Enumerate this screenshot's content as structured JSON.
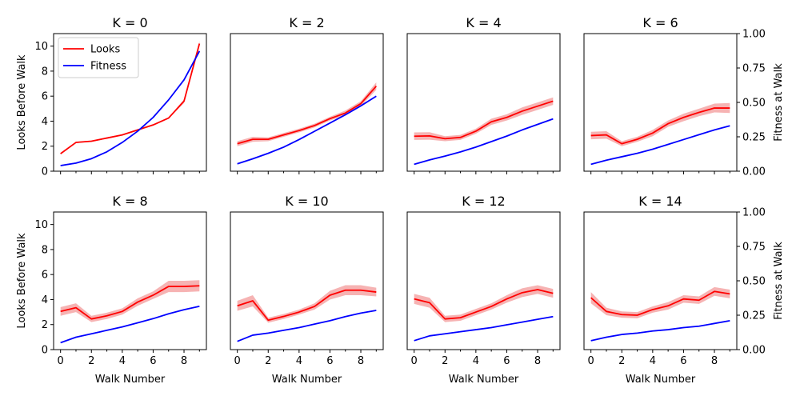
{
  "chart_data": {
    "type": "line",
    "shared_x_label": "Walk Number",
    "left_y_label": "Looks Before Walk",
    "right_y_label": "Fitness at Walk",
    "x": [
      0,
      1,
      2,
      3,
      4,
      5,
      6,
      7,
      8,
      9
    ],
    "xlim": [
      -0.45,
      9.45
    ],
    "x_ticks": [
      0,
      2,
      4,
      6,
      8
    ],
    "x_tick_labels": [
      "0",
      "2",
      "4",
      "6",
      "8"
    ],
    "left_ylim": [
      0,
      11
    ],
    "left_y_ticks": [
      0,
      2,
      4,
      6,
      8,
      10
    ],
    "left_y_tick_labels": [
      "0",
      "2",
      "4",
      "6",
      "8",
      "10"
    ],
    "right_ylim": [
      0,
      1.0
    ],
    "right_y_ticks": [
      0,
      0.25,
      0.5,
      0.75,
      1.0
    ],
    "right_y_tick_labels": [
      "0.00",
      "0.25",
      "0.50",
      "0.75",
      "1.00"
    ],
    "legend": {
      "placement": "upper-left",
      "entries": [
        {
          "label": "Looks",
          "color": "#ff0000"
        },
        {
          "label": "Fitness",
          "color": "#0000ff"
        }
      ]
    },
    "colors": {
      "looks": "#ff0000",
      "fitness": "#0000ff",
      "looks_band": "#f4a6a6",
      "fitness_band": "#a6a6f4"
    },
    "panels": [
      {
        "title": "K = 0",
        "series": [
          {
            "name": "Looks",
            "axis": "left",
            "values": [
              1.4,
              2.3,
              2.4,
              2.65,
              2.9,
              3.3,
              3.7,
              4.25,
              5.6,
              10.2
            ],
            "spread": [
              0.05,
              0.05,
              0.05,
              0.05,
              0.05,
              0.05,
              0.05,
              0.05,
              0.15,
              0.2
            ]
          },
          {
            "name": "Fitness",
            "axis": "left",
            "values": [
              0.45,
              0.65,
              1.0,
              1.55,
              2.3,
              3.2,
              4.3,
              5.7,
              7.3,
              9.6
            ],
            "spread": [
              0.05,
              0.05,
              0.05,
              0.05,
              0.05,
              0.05,
              0.05,
              0.05,
              0.05,
              0.1
            ]
          }
        ]
      },
      {
        "title": "K = 2",
        "series": [
          {
            "name": "Looks",
            "axis": "left",
            "values": [
              2.2,
              2.55,
              2.55,
              2.9,
              3.25,
              3.65,
              4.2,
              4.65,
              5.4,
              6.8
            ],
            "spread": [
              0.2,
              0.2,
              0.15,
              0.15,
              0.15,
              0.15,
              0.15,
              0.2,
              0.2,
              0.3
            ]
          },
          {
            "name": "Fitness",
            "axis": "right",
            "values": [
              0.054,
              0.09,
              0.13,
              0.175,
              0.23,
              0.29,
              0.35,
              0.41,
              0.475,
              0.545
            ],
            "spread": [
              0.005,
              0.005,
              0.005,
              0.005,
              0.005,
              0.005,
              0.005,
              0.005,
              0.005,
              0.005
            ]
          }
        ]
      },
      {
        "title": "K = 4",
        "series": [
          {
            "name": "Looks",
            "axis": "left",
            "values": [
              2.8,
              2.82,
              2.6,
              2.7,
              3.2,
              3.95,
              4.3,
              4.8,
              5.2,
              5.6
            ],
            "spread": [
              0.3,
              0.3,
              0.2,
              0.2,
              0.2,
              0.25,
              0.25,
              0.3,
              0.3,
              0.3
            ]
          },
          {
            "name": "Fitness",
            "axis": "right",
            "values": [
              0.05,
              0.082,
              0.11,
              0.14,
              0.175,
              0.215,
              0.255,
              0.3,
              0.34,
              0.38
            ],
            "spread": [
              0.004,
              0.004,
              0.004,
              0.004,
              0.004,
              0.004,
              0.004,
              0.004,
              0.004,
              0.004
            ]
          }
        ]
      },
      {
        "title": "K = 6",
        "series": [
          {
            "name": "Looks",
            "axis": "left",
            "values": [
              2.85,
              2.9,
              2.2,
              2.55,
              3.05,
              3.8,
              4.3,
              4.7,
              5.05,
              5.05
            ],
            "spread": [
              0.3,
              0.3,
              0.2,
              0.2,
              0.25,
              0.25,
              0.3,
              0.3,
              0.35,
              0.4
            ]
          },
          {
            "name": "Fitness",
            "axis": "right",
            "values": [
              0.05,
              0.08,
              0.105,
              0.13,
              0.16,
              0.195,
              0.23,
              0.265,
              0.3,
              0.33
            ],
            "spread": [
              0.004,
              0.004,
              0.004,
              0.004,
              0.004,
              0.004,
              0.004,
              0.004,
              0.004,
              0.004
            ]
          }
        ]
      },
      {
        "title": "K = 8",
        "series": [
          {
            "name": "Looks",
            "axis": "left",
            "values": [
              3.05,
              3.35,
              2.45,
              2.7,
              3.05,
              3.8,
              4.35,
              5.05,
              5.05,
              5.1
            ],
            "spread": [
              0.35,
              0.35,
              0.25,
              0.25,
              0.25,
              0.3,
              0.3,
              0.45,
              0.45,
              0.45
            ]
          },
          {
            "name": "Fitness",
            "axis": "right",
            "values": [
              0.05,
              0.09,
              0.115,
              0.14,
              0.165,
              0.195,
              0.225,
              0.26,
              0.29,
              0.315
            ],
            "spread": [
              0.004,
              0.004,
              0.004,
              0.004,
              0.004,
              0.004,
              0.004,
              0.004,
              0.004,
              0.004
            ]
          }
        ]
      },
      {
        "title": "K = 10",
        "series": [
          {
            "name": "Looks",
            "axis": "left",
            "values": [
              3.5,
              3.9,
              2.35,
              2.65,
              3.0,
              3.45,
              4.35,
              4.75,
              4.75,
              4.6
            ],
            "spread": [
              0.4,
              0.45,
              0.2,
              0.2,
              0.2,
              0.25,
              0.35,
              0.4,
              0.4,
              0.35
            ]
          },
          {
            "name": "Fitness",
            "axis": "right",
            "values": [
              0.06,
              0.105,
              0.12,
              0.14,
              0.16,
              0.185,
              0.21,
              0.24,
              0.265,
              0.285
            ],
            "spread": [
              0.004,
              0.004,
              0.004,
              0.004,
              0.004,
              0.004,
              0.004,
              0.004,
              0.004,
              0.004
            ]
          }
        ]
      },
      {
        "title": "K = 12",
        "series": [
          {
            "name": "Looks",
            "axis": "left",
            "values": [
              4.05,
              3.75,
              2.45,
              2.55,
              3.0,
              3.45,
              4.05,
              4.55,
              4.8,
              4.5
            ],
            "spread": [
              0.4,
              0.4,
              0.25,
              0.25,
              0.25,
              0.25,
              0.3,
              0.35,
              0.35,
              0.35
            ]
          },
          {
            "name": "Fitness",
            "axis": "right",
            "values": [
              0.065,
              0.1,
              0.115,
              0.13,
              0.145,
              0.16,
              0.18,
              0.2,
              0.22,
              0.24
            ],
            "spread": [
              0.004,
              0.004,
              0.004,
              0.004,
              0.004,
              0.004,
              0.004,
              0.004,
              0.004,
              0.004
            ]
          }
        ]
      },
      {
        "title": "K = 14",
        "series": [
          {
            "name": "Looks",
            "axis": "left",
            "values": [
              4.15,
              3.05,
              2.8,
              2.75,
              3.2,
              3.5,
              4.05,
              3.95,
              4.65,
              4.45
            ],
            "spread": [
              0.45,
              0.3,
              0.25,
              0.25,
              0.25,
              0.3,
              0.3,
              0.3,
              0.35,
              0.35
            ]
          },
          {
            "name": "Fitness",
            "axis": "right",
            "values": [
              0.065,
              0.09,
              0.11,
              0.12,
              0.135,
              0.145,
              0.16,
              0.17,
              0.19,
              0.21
            ],
            "spread": [
              0.004,
              0.004,
              0.004,
              0.004,
              0.004,
              0.004,
              0.004,
              0.004,
              0.004,
              0.004
            ]
          }
        ]
      }
    ]
  }
}
